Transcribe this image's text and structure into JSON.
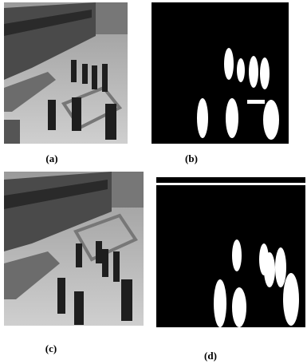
{
  "figure": {
    "labels": [
      "(a)",
      "(b)",
      "(c)",
      "(d)"
    ]
  }
}
